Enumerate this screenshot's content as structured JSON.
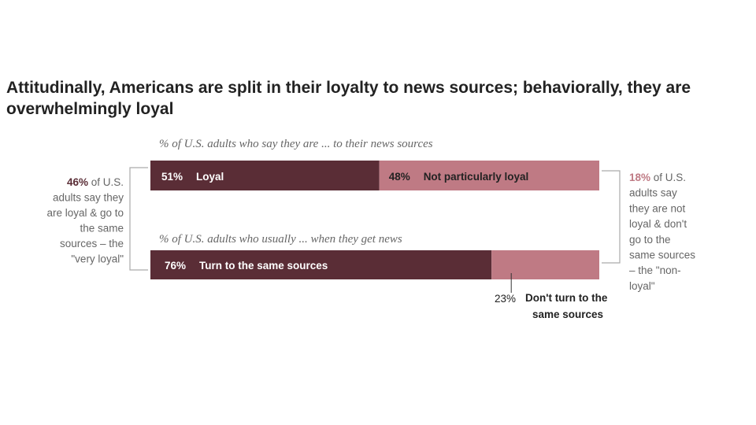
{
  "chart_data": {
    "type": "bar",
    "orientation": "horizontal",
    "stacked": true,
    "title": "Attitudinally, Americans are split in their loyalty to news sources; behaviorally, they are overwhelmingly loyal",
    "xlim": [
      0,
      100
    ],
    "grid": false,
    "colors": {
      "primary": "#5a2d36",
      "secondary": "#bf7a84",
      "bracket": "#aaaaaa",
      "text": "#222222",
      "gray_text": "#666666"
    },
    "bars": [
      {
        "subtitle": "% of U.S. adults who say they are ... to their news sources",
        "segments": [
          {
            "value": 51,
            "value_label": "51%",
            "label": "Loyal"
          },
          {
            "value": 48,
            "value_label": "48%",
            "label": "Not particularly loyal"
          }
        ]
      },
      {
        "subtitle": "% of U.S. adults who usually ... when they get news",
        "segments": [
          {
            "value": 76,
            "value_label": "76%",
            "label": "Turn to the same sources"
          },
          {
            "value": 23,
            "value_label": "23%",
            "label": "Don't turn to the same sources"
          }
        ]
      }
    ],
    "annotations": {
      "left": {
        "pct": "46%",
        "lines": [
          "of U.S.",
          "adults say they",
          "are loyal & go to",
          "the same",
          "sources – the",
          "\"very loyal\""
        ]
      },
      "right": {
        "pct": "18%",
        "lines": [
          "of U.S.",
          "adults say",
          "they are not",
          "loyal & don't",
          "go to the",
          "same sources",
          "– the \"non-",
          "loyal\""
        ]
      },
      "outside_label_lines": [
        "Don't turn to the",
        "same sources"
      ]
    }
  }
}
